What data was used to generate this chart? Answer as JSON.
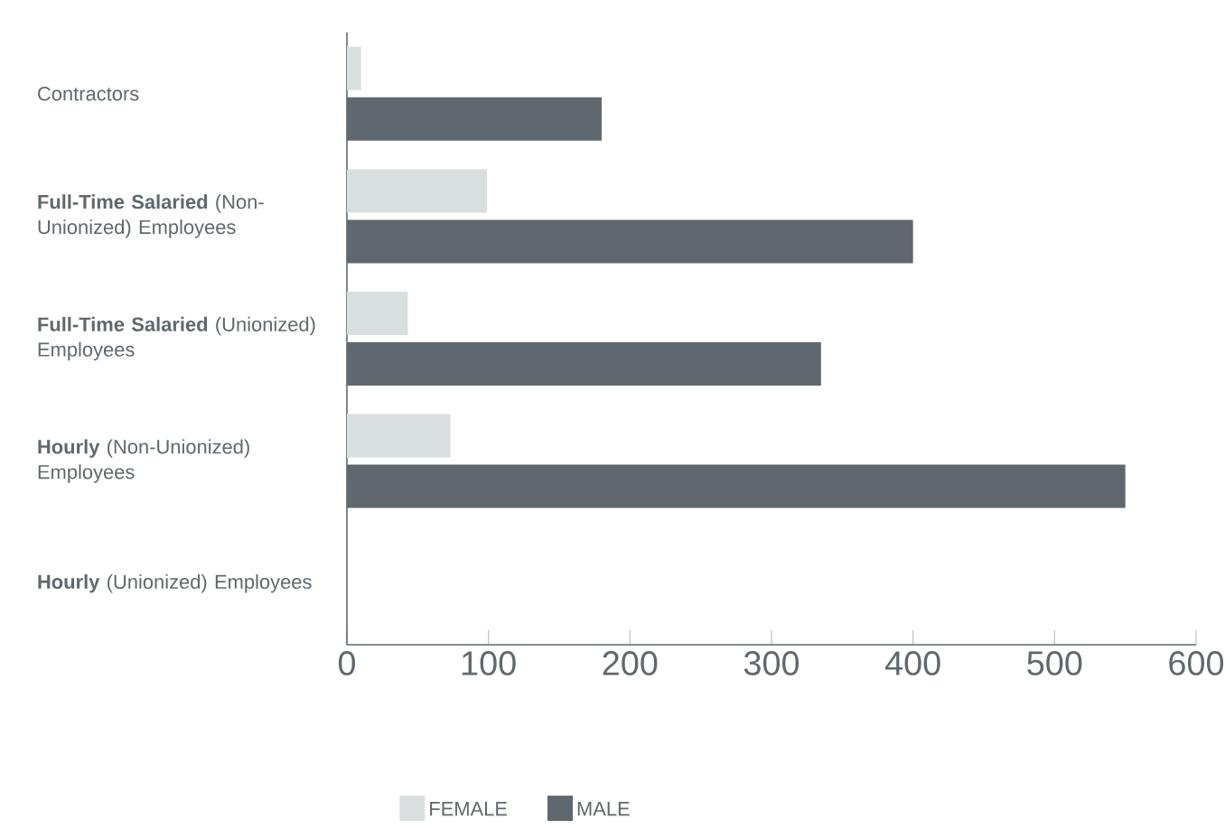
{
  "chart_data": {
    "type": "bar",
    "orientation": "horizontal",
    "categories": [
      "Contractors",
      "**Full-Time Salaried** (Non-Unionized) Employees",
      "**Full-Time Salaried** (Unionized) Employees",
      "**Hourly** (Non-Unionized) Employees",
      "**Hourly** (Unionized) Employees"
    ],
    "series": [
      {
        "name": "FEMALE",
        "color": "#d9dede",
        "values": [
          10,
          99,
          43,
          73,
          0
        ]
      },
      {
        "name": "MALE",
        "color": "#5f686e",
        "values": [
          180,
          400,
          335,
          550,
          0
        ]
      }
    ],
    "xlim": [
      0,
      600
    ],
    "xticks": [
      0,
      100,
      200,
      300,
      400,
      500,
      600
    ],
    "grid": false,
    "legend": "bottom"
  }
}
